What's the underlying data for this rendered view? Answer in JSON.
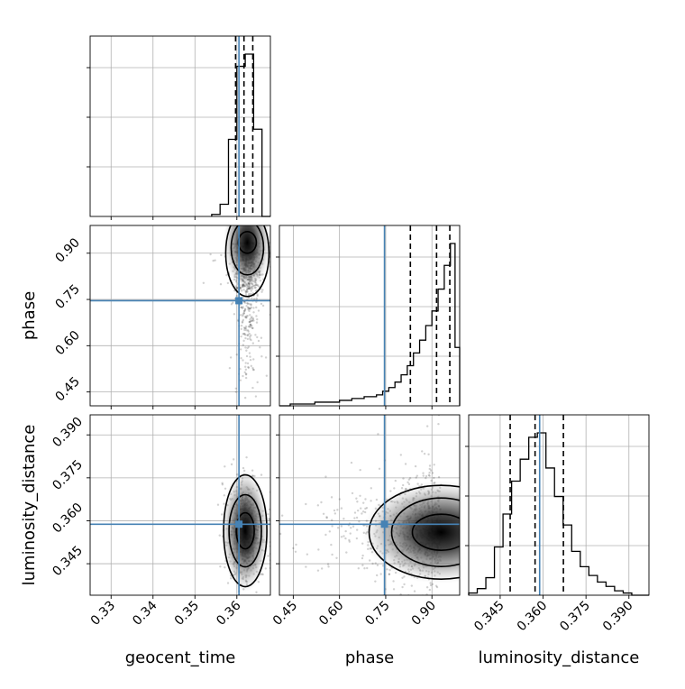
{
  "chart_data": {
    "type": "corner",
    "parameters": [
      "geocent_time",
      "phase",
      "luminosity_distance"
    ],
    "axis_labels": {
      "geocent_time": "geocent_time",
      "phase": "phase",
      "luminosity_distance": "luminosity_distance"
    },
    "ranges": {
      "geocent_time": [
        0.325,
        0.368
      ],
      "phase": [
        0.405,
        0.99
      ],
      "luminosity_distance": [
        0.334,
        0.397
      ]
    },
    "ticks": {
      "geocent_time": [
        "0.33",
        "0.34",
        "0.35",
        "0.36"
      ],
      "phase": [
        "0.45",
        "0.60",
        "0.75",
        "0.90"
      ],
      "luminosity_distance": [
        "0.345",
        "0.360",
        "0.375",
        "0.390"
      ]
    },
    "truths": {
      "geocent_time": 0.3605,
      "phase": 0.746,
      "luminosity_distance": 0.3588
    },
    "quantiles": {
      "geocent_time": [
        0.3597,
        0.3617,
        0.3638
      ],
      "phase": [
        0.83,
        0.915,
        0.958
      ],
      "luminosity_distance": [
        0.3485,
        0.3572,
        0.3671
      ]
    },
    "histograms": {
      "geocent_time": {
        "edges": [
          0.354,
          0.356,
          0.358,
          0.36,
          0.362,
          0.364,
          0.366,
          0.368
        ],
        "counts": [
          0.01,
          0.06,
          0.38,
          0.74,
          0.8,
          0.43,
          0.0
        ]
      },
      "phase": {
        "edges": [
          0.405,
          0.44,
          0.48,
          0.52,
          0.56,
          0.6,
          0.64,
          0.68,
          0.72,
          0.74,
          0.76,
          0.78,
          0.8,
          0.82,
          0.84,
          0.86,
          0.88,
          0.9,
          0.92,
          0.94,
          0.96,
          0.975,
          0.99
        ],
        "counts": [
          0.0,
          0.01,
          0.01,
          0.02,
          0.02,
          0.03,
          0.04,
          0.05,
          0.06,
          0.08,
          0.1,
          0.13,
          0.17,
          0.22,
          0.29,
          0.36,
          0.44,
          0.52,
          0.64,
          0.77,
          0.89,
          0.32
        ]
      },
      "luminosity_distance": {
        "edges": [
          0.334,
          0.337,
          0.34,
          0.343,
          0.346,
          0.349,
          0.352,
          0.355,
          0.358,
          0.361,
          0.364,
          0.367,
          0.37,
          0.373,
          0.376,
          0.379,
          0.382,
          0.385,
          0.388,
          0.391,
          0.394,
          0.397
        ],
        "counts": [
          0.01,
          0.03,
          0.08,
          0.22,
          0.37,
          0.52,
          0.62,
          0.72,
          0.74,
          0.58,
          0.45,
          0.32,
          0.2,
          0.13,
          0.09,
          0.06,
          0.04,
          0.02,
          0.01,
          0.0,
          0.0
        ]
      }
    },
    "density_peaks": [
      {
        "x": "geocent_time",
        "y": "phase",
        "center": [
          0.3625,
          0.935
        ]
      },
      {
        "x": "geocent_time",
        "y": "luminosity_distance",
        "center": [
          0.362,
          0.3565
        ]
      },
      {
        "x": "phase",
        "y": "luminosity_distance",
        "center": [
          0.93,
          0.356
        ]
      }
    ],
    "grid": true
  }
}
